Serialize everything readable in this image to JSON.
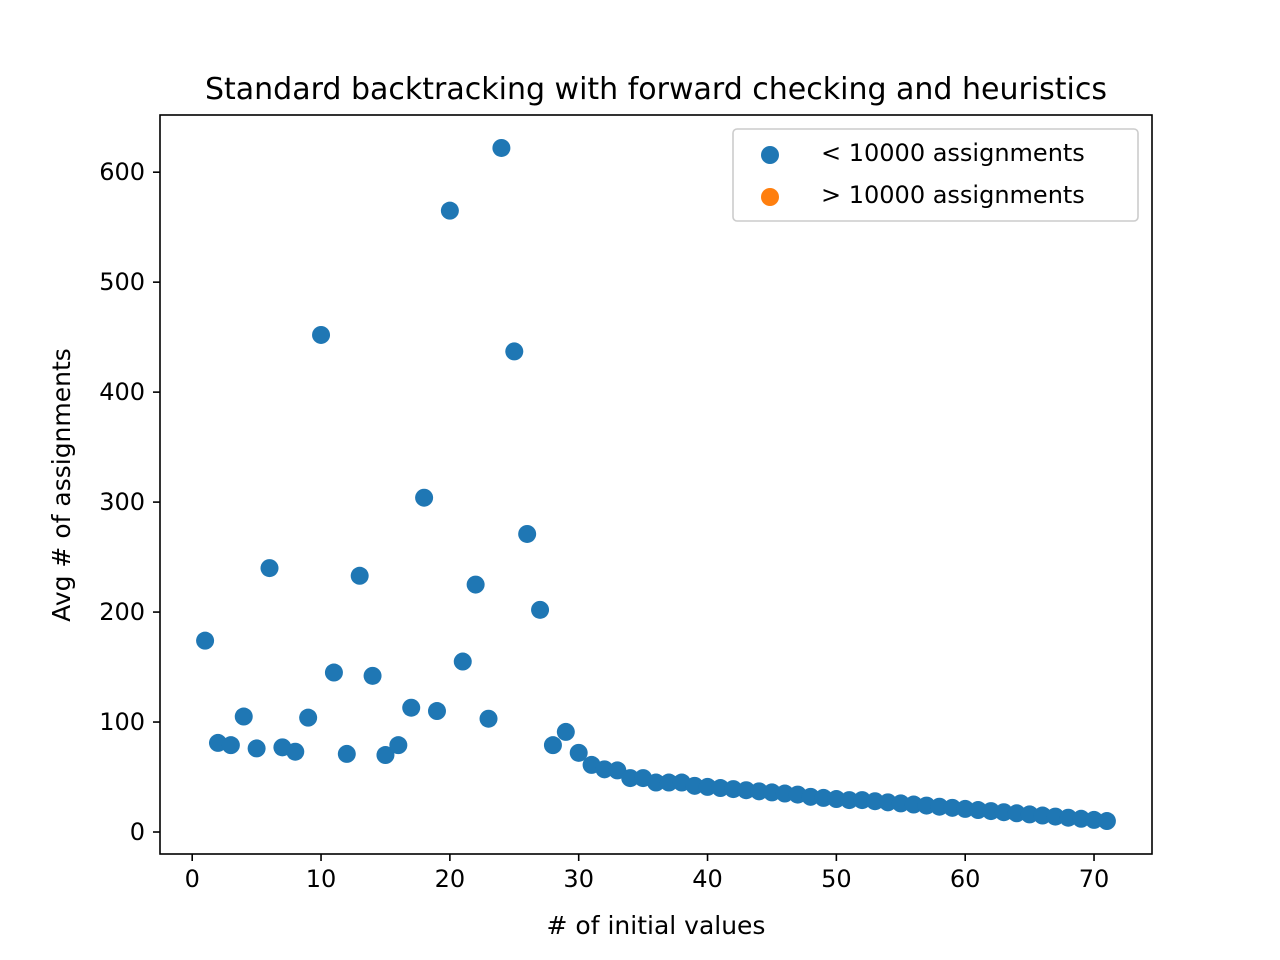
{
  "chart_data": {
    "type": "scatter",
    "title": "Standard backtracking with forward checking and heuristics",
    "xlabel": "# of initial values",
    "ylabel": "Avg # of assignments",
    "xlim": [
      -2.5,
      74.5
    ],
    "ylim": [
      -20,
      652
    ],
    "xticks": [
      0,
      10,
      20,
      30,
      40,
      50,
      60,
      70
    ],
    "yticks": [
      0,
      100,
      200,
      300,
      400,
      500,
      600
    ],
    "grid": false,
    "legend_position": "top-right",
    "series": [
      {
        "name": "< 10000 assignments",
        "color": "#1f77b4",
        "x": [
          1,
          2,
          3,
          4,
          5,
          6,
          7,
          8,
          9,
          10,
          11,
          12,
          13,
          14,
          15,
          16,
          17,
          18,
          19,
          20,
          21,
          22,
          23,
          24,
          25,
          26,
          27,
          28,
          29,
          30,
          31,
          32,
          33,
          34,
          35,
          36,
          37,
          38,
          39,
          40,
          41,
          42,
          43,
          44,
          45,
          46,
          47,
          48,
          49,
          50,
          51,
          52,
          53,
          54,
          55,
          56,
          57,
          58,
          59,
          60,
          61,
          62,
          63,
          64,
          65,
          66,
          67,
          68,
          69,
          70,
          71
        ],
        "y": [
          174,
          81,
          79,
          105,
          76,
          240,
          77,
          73,
          104,
          452,
          145,
          71,
          233,
          142,
          70,
          79,
          113,
          304,
          110,
          565,
          155,
          225,
          103,
          622,
          437,
          271,
          202,
          79,
          91,
          72,
          61,
          57,
          56,
          49,
          49,
          45,
          45,
          45,
          42,
          41,
          40,
          39,
          38,
          37,
          36,
          35,
          34,
          32,
          31,
          30,
          29,
          29,
          28,
          27,
          26,
          25,
          24,
          23,
          22,
          21,
          20,
          19,
          18,
          17,
          16,
          15,
          14,
          13,
          12,
          11,
          10
        ]
      },
      {
        "name": "> 10000 assignments",
        "color": "#ff7f0e",
        "x": [],
        "y": []
      }
    ]
  }
}
